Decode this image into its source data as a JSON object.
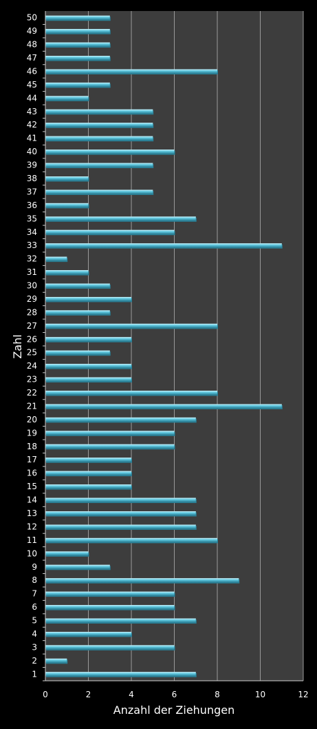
{
  "chart_data": {
    "type": "bar",
    "orientation": "horizontal",
    "xlabel": "Anzahl der Ziehungen",
    "ylabel": "Zahl",
    "xlim": [
      0,
      12
    ],
    "xticks": [
      "0",
      "2",
      "4",
      "6",
      "8",
      "10",
      "12"
    ],
    "grid": true,
    "legend": "none",
    "categories": [
      "1",
      "2",
      "3",
      "4",
      "5",
      "6",
      "7",
      "8",
      "9",
      "10",
      "11",
      "12",
      "13",
      "14",
      "15",
      "16",
      "17",
      "18",
      "19",
      "20",
      "21",
      "22",
      "23",
      "24",
      "25",
      "26",
      "27",
      "28",
      "29",
      "30",
      "31",
      "32",
      "33",
      "34",
      "35",
      "36",
      "37",
      "38",
      "39",
      "40",
      "41",
      "42",
      "43",
      "44",
      "45",
      "46",
      "47",
      "48",
      "49",
      "50"
    ],
    "values": [
      7,
      1,
      6,
      4,
      7,
      6,
      6,
      9,
      3,
      2,
      8,
      7,
      7,
      7,
      4,
      4,
      4,
      6,
      6,
      7,
      11,
      8,
      4,
      4,
      3,
      4,
      8,
      3,
      4,
      3,
      2,
      1,
      11,
      6,
      7,
      2,
      5,
      2,
      5,
      6,
      5,
      5,
      5,
      2,
      3,
      8,
      3,
      3,
      3,
      3
    ]
  },
  "colors": {
    "background": "#000000",
    "plot_area": "#3d3d3d",
    "gridline": "#9a9a9a",
    "bar": "#5bc4dc",
    "bar_highlight": "#b4ecf8",
    "bar_shadow": "#2a7f95",
    "text": "#ffffff"
  }
}
